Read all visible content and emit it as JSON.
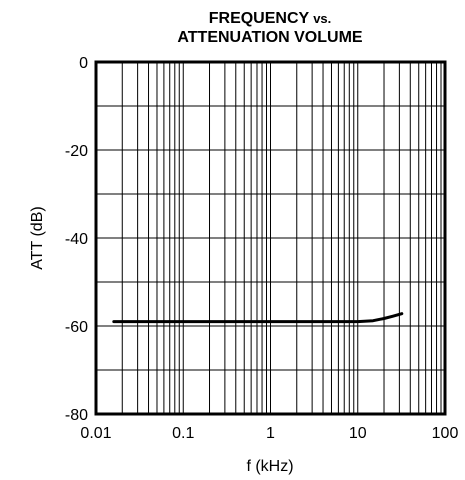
{
  "chart_data": {
    "type": "line",
    "title": "FREQUENCY",
    "title_suffix": "vs.",
    "subtitle": "ATTENUATION VOLUME",
    "xlabel": "f (kHz)",
    "ylabel": "ATT (dB)",
    "x_scale": "log",
    "xlim": [
      0.01,
      100
    ],
    "ylim": [
      -80,
      0
    ],
    "x_ticks": [
      0.01,
      0.1,
      1,
      10,
      100
    ],
    "x_tick_labels": [
      "0.01",
      "0.1",
      "1",
      "10",
      "100"
    ],
    "y_ticks": [
      0,
      -20,
      -40,
      -60,
      -80
    ],
    "y_tick_labels": [
      "0",
      "-20",
      "-40",
      "-60",
      "-80"
    ],
    "grid": true,
    "series": [
      {
        "x": [
          0.016,
          0.1,
          1,
          10,
          15,
          20,
          25,
          32
        ],
        "y": [
          -59,
          -59,
          -59,
          -59,
          -58.8,
          -58.3,
          -57.8,
          -57.2
        ]
      }
    ],
    "line_color": "#000000"
  }
}
